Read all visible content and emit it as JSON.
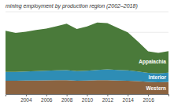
{
  "chart_data": {
    "type": "area",
    "stacked": true,
    "title": "mining employment by production region (2002–2018)",
    "x": [
      2002,
      2003,
      2004,
      2005,
      2006,
      2007,
      2008,
      2009,
      2010,
      2011,
      2012,
      2013,
      2014,
      2015,
      2016,
      2017,
      2018
    ],
    "series": [
      {
        "name": "Western",
        "color": "#8B6340",
        "values": [
          13000,
          13000,
          13200,
          13200,
          13400,
          13500,
          13500,
          13000,
          13200,
          13500,
          13500,
          13200,
          13000,
          12500,
          11800,
          11500,
          11800
        ]
      },
      {
        "name": "Interior",
        "color": "#2E8DB5",
        "values": [
          8500,
          8500,
          8800,
          9000,
          9200,
          9500,
          9800,
          9200,
          9500,
          10000,
          10500,
          10200,
          10000,
          9500,
          8800,
          8500,
          9000
        ]
      },
      {
        "name": "Appalachia",
        "color": "#4A7A3A",
        "values": [
          40000,
          38000,
          38500,
          40000,
          41000,
          43000,
          45000,
          41000,
          43000,
          46000,
          45000,
          41000,
          37000,
          29000,
          21000,
          20000,
          21000
        ]
      }
    ],
    "xlim": [
      2002,
      2018
    ],
    "ylim": [
      0,
      80000
    ],
    "xticks": [
      2004,
      2006,
      2008,
      2010,
      2012,
      2014,
      2016
    ],
    "yticks": [
      20000,
      40000,
      60000,
      80000
    ],
    "grid": true,
    "tick_labels": "x"
  }
}
